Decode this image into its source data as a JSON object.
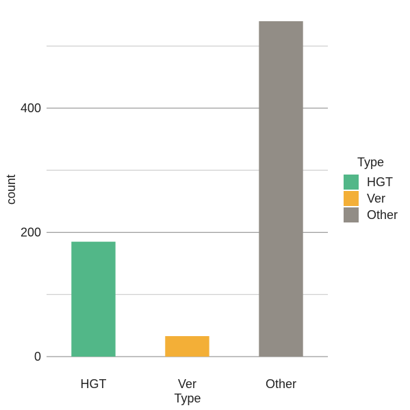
{
  "chart_data": {
    "type": "bar",
    "categories": [
      "HGT",
      "Ver",
      "Other"
    ],
    "values": [
      185,
      33,
      540
    ],
    "xlabel": "Type",
    "ylabel": "count",
    "ylim": [
      0,
      540
    ],
    "y_ticks": [
      0,
      200,
      400
    ],
    "y_ticks_labels": [
      "0",
      "200",
      "400"
    ],
    "grid": true,
    "legend": {
      "title": "Type",
      "position": "right",
      "entries": [
        "HGT",
        "Ver",
        "Other"
      ]
    },
    "colors": [
      "#52b788",
      "#f3af37",
      "#928d86"
    ]
  }
}
